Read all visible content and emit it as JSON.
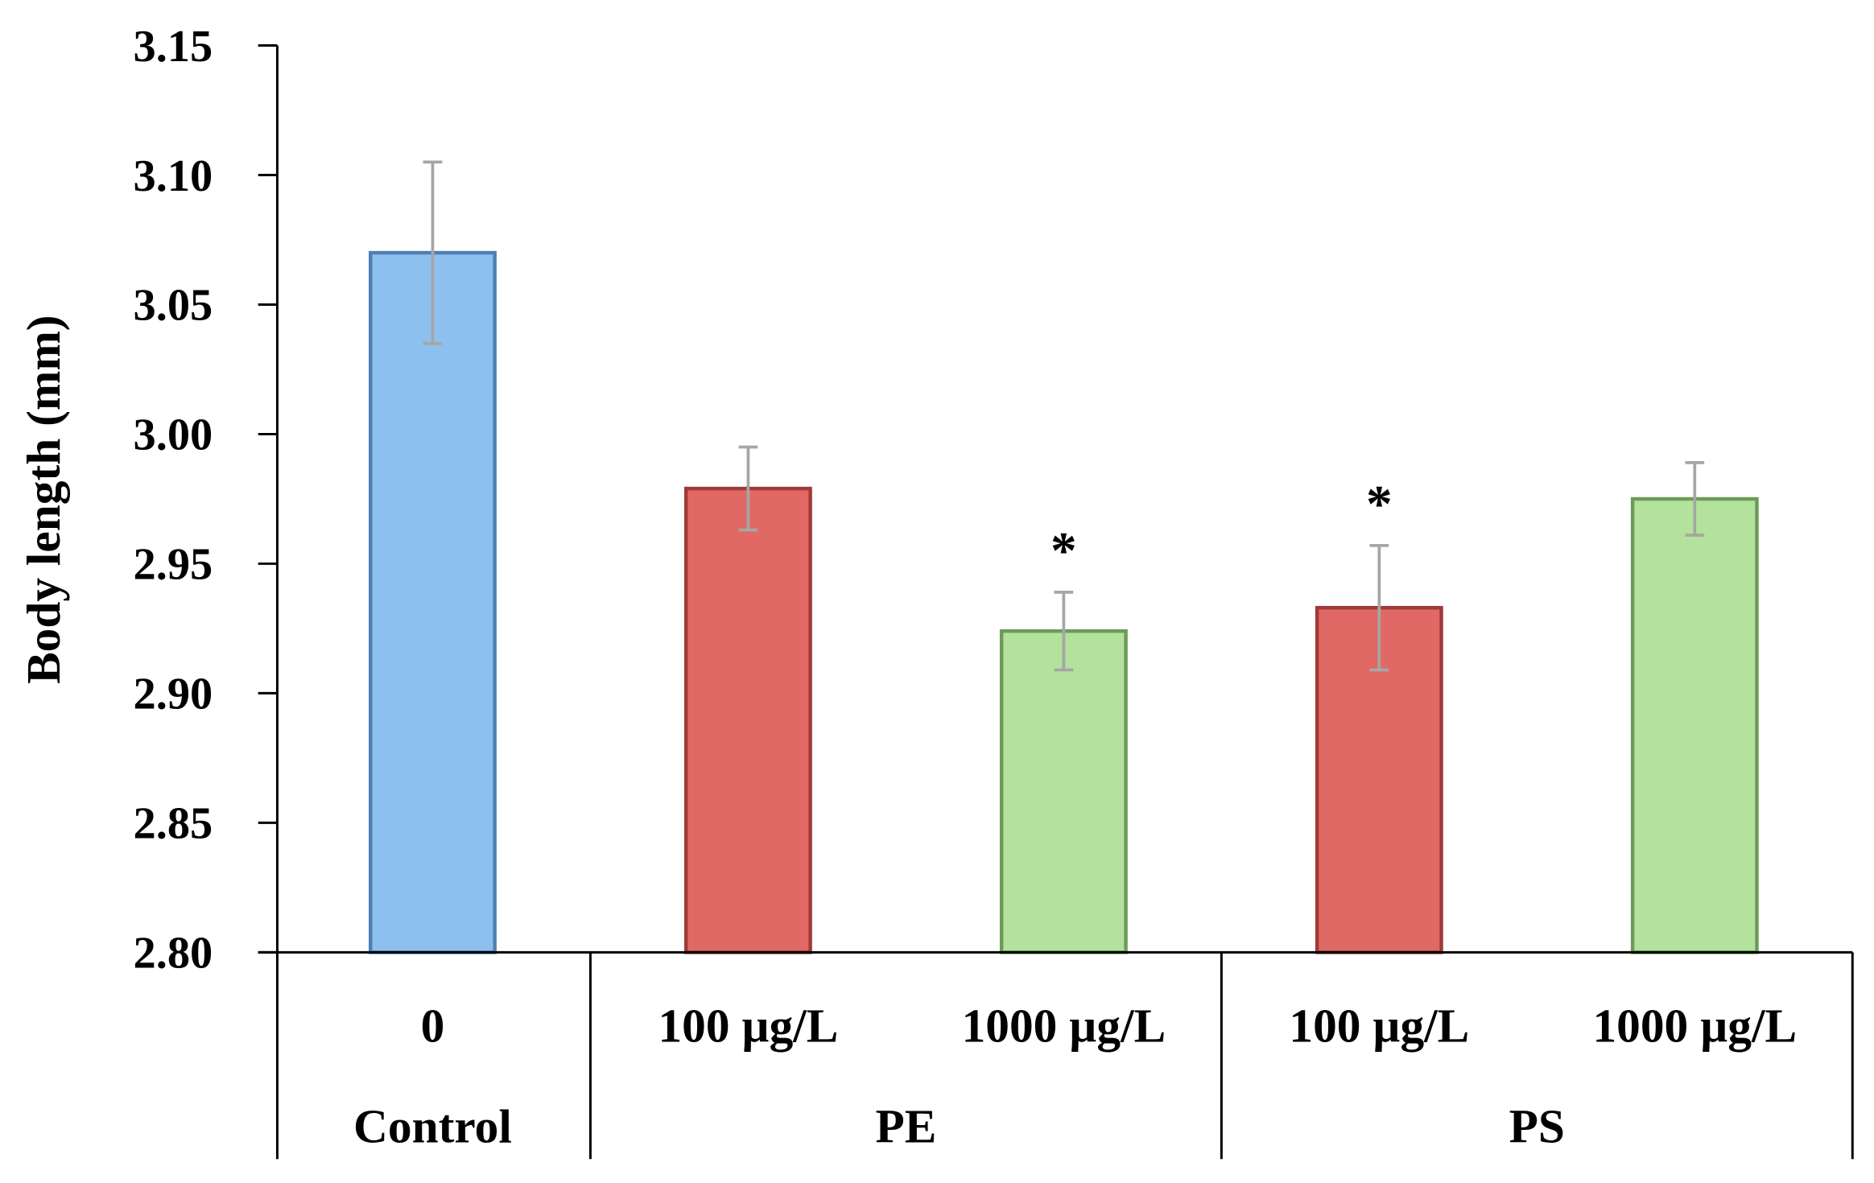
{
  "chart_data": {
    "type": "bar",
    "title": "",
    "xlabel": "",
    "ylabel": "Body length (mm)",
    "ylim": [
      2.8,
      3.15
    ],
    "yticks": [
      "2.80",
      "2.85",
      "2.90",
      "2.95",
      "3.00",
      "3.05",
      "3.10",
      "3.15"
    ],
    "grid": false,
    "categories": [
      "0",
      "100 µg/L",
      "1000 µg/L",
      "100 µg/L",
      "1000 µg/L"
    ],
    "groups": [
      {
        "label": "Control",
        "span": 1
      },
      {
        "label": "PE",
        "span": 2
      },
      {
        "label": "PS",
        "span": 2
      }
    ],
    "values": [
      3.07,
      2.979,
      2.924,
      2.933,
      2.975
    ],
    "errors": [
      0.035,
      0.016,
      0.015,
      0.024,
      0.014
    ],
    "significance": [
      "",
      "",
      "*",
      "*",
      ""
    ],
    "colors": [
      "#8dc0ee",
      "#e06966",
      "#b2e29c",
      "#e06966",
      "#b2e29c"
    ],
    "edge_colors": [
      "#4f7fb5",
      "#9e3b38",
      "#6d9a5a",
      "#9e3b38",
      "#6d9a5a"
    ],
    "error_color": "#a6a6a6"
  }
}
